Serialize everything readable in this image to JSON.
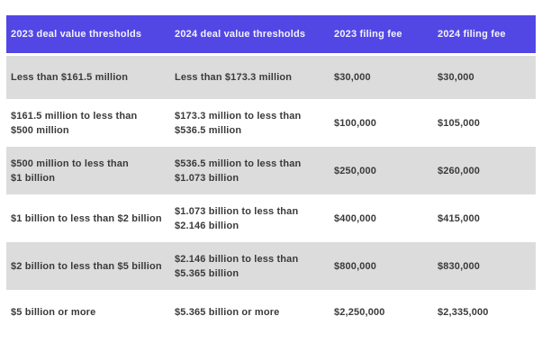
{
  "colors": {
    "header_bg": "#5247e5",
    "header_text": "#f3f2fd",
    "zebra_row_bg": "#dcdcdc",
    "plain_row_bg": "#ffffff",
    "cell_text": "#3a3a3a"
  },
  "table": {
    "headers": [
      "2023 deal value thresholds",
      "2024 deal value thresholds",
      "2023 filing fee",
      "2024 filing fee"
    ],
    "rows": [
      {
        "cells": [
          "Less than $161.5 million",
          "Less than $173.3 million",
          "$30,000",
          "$30,000"
        ]
      },
      {
        "cells": [
          "$161.5 million to less than\n$500 million",
          "$173.3 million to less than\n$536.5 million",
          "$100,000",
          "$105,000"
        ]
      },
      {
        "cells": [
          "$500 million to less than\n$1 billion",
          "$536.5 million to less than\n$1.073 billion",
          "$250,000",
          "$260,000"
        ]
      },
      {
        "cells": [
          "$1 billion to less than $2 billion",
          "$1.073 billion to less than\n$2.146 billion",
          "$400,000",
          "$415,000"
        ]
      },
      {
        "cells": [
          "$2 billion to less than $5 billion",
          "$2.146 billion to less than\n$5.365 billion",
          "$800,000",
          "$830,000"
        ]
      },
      {
        "cells": [
          "$5 billion or more",
          "$5.365 billion or more",
          "$2,250,000",
          "$2,335,000"
        ]
      }
    ]
  },
  "chart_data": {
    "type": "table",
    "columns": [
      "2023 deal value thresholds",
      "2024 deal value thresholds",
      "2023 filing fee",
      "2024 filing fee"
    ],
    "rows": [
      [
        "Less than $161.5 million",
        "Less than $173.3 million",
        "$30,000",
        "$30,000"
      ],
      [
        "$161.5 million to less than $500 million",
        "$173.3 million to less than $536.5 million",
        "$100,000",
        "$105,000"
      ],
      [
        "$500 million to less than $1 billion",
        "$536.5 million to less than $1.073 billion",
        "$250,000",
        "$260,000"
      ],
      [
        "$1 billion to less than $2 billion",
        "$1.073 billion to less than $2.146 billion",
        "$400,000",
        "$415,000"
      ],
      [
        "$2 billion to less than $5 billion",
        "$2.146 billion to less than $5.365 billion",
        "$800,000",
        "$830,000"
      ],
      [
        "$5 billion or more",
        "$5.365 billion or more",
        "$2,250,000",
        "$2,335,000"
      ]
    ],
    "layout": {
      "zebra_striping": true,
      "header_style": "solid-indigo",
      "legend": "none",
      "grid": "off"
    }
  }
}
